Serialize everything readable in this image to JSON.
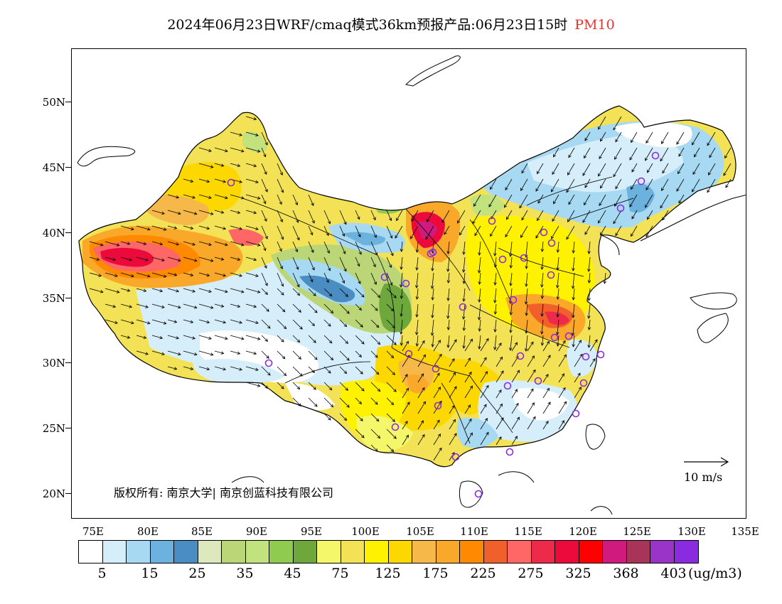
{
  "title": {
    "main": "2024年06月23日WRF/cmaq模式36km预报产品:06月23日15时",
    "variable": "PM10",
    "variable_color": "#e8332f"
  },
  "map": {
    "lat_labels": [
      "50N",
      "45N",
      "40N",
      "35N",
      "30N",
      "25N",
      "20N"
    ],
    "lon_labels": [
      "75E",
      "80E",
      "85E",
      "90E",
      "95E",
      "100E",
      "105E",
      "110E",
      "115E",
      "120E",
      "125E",
      "130E",
      "135E"
    ],
    "copyright": "版权所有: 南京大学| 南京创蓝科技有限公司",
    "reference_vector_label": "10 m/s",
    "station_marker_color": "#8a2be2"
  },
  "colorbar": {
    "colors": [
      "#ffffff",
      "#d6eef9",
      "#a8d9f2",
      "#6cb2de",
      "#4a8dc3",
      "#dde9bc",
      "#bad676",
      "#c2e27e",
      "#8fcb4e",
      "#6ea83c",
      "#f3f769",
      "#f3e256",
      "#fff200",
      "#fcd800",
      "#f7b84a",
      "#f9a829",
      "#ff8a00",
      "#f15f2a",
      "#ff6666",
      "#ee2a4b",
      "#ec0a3c",
      "#ff0000",
      "#d01a7e",
      "#a8345a",
      "#9a34c9",
      "#8a2be2"
    ],
    "labels": [
      "5",
      "15",
      "25",
      "35",
      "45",
      "75",
      "125",
      "175",
      "225",
      "275",
      "325",
      "368",
      "403"
    ],
    "unit": "(ug/m3)"
  }
}
